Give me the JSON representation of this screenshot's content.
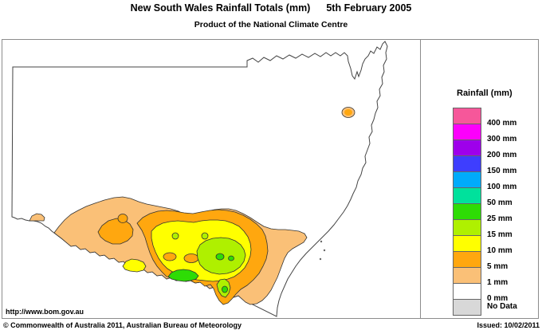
{
  "header": {
    "title": "New South Wales Rainfall Totals (mm)",
    "date": "5th February 2005",
    "subtitle": "Product of the National Climate Centre"
  },
  "legend": {
    "title": "Rainfall (mm)",
    "items": [
      {
        "label": "400 mm",
        "color": "#F6579A"
      },
      {
        "label": "300 mm",
        "color": "#FC00FC"
      },
      {
        "label": "200 mm",
        "color": "#9E00EB"
      },
      {
        "label": "150 mm",
        "color": "#3E3EFE"
      },
      {
        "label": "100 mm",
        "color": "#00ABFB"
      },
      {
        "label": "50 mm",
        "color": "#00E19C"
      },
      {
        "label": "25 mm",
        "color": "#2EDC05"
      },
      {
        "label": "15 mm",
        "color": "#AFF000"
      },
      {
        "label": "10 mm",
        "color": "#FFFF00"
      },
      {
        "label": "5 mm",
        "color": "#FFA70F"
      },
      {
        "label": "1 mm",
        "color": "#FAC077"
      },
      {
        "label": "0 mm",
        "color": "#FFFFFF"
      },
      {
        "label": "No Data",
        "color": "#D8D8D8"
      }
    ]
  },
  "footer": {
    "url": "http://www.bom.gov.au",
    "copyright": "© Commonwealth of Australia 2011, Australian Bureau of Meteorology",
    "issued": "Issued: 10/02/2011"
  }
}
